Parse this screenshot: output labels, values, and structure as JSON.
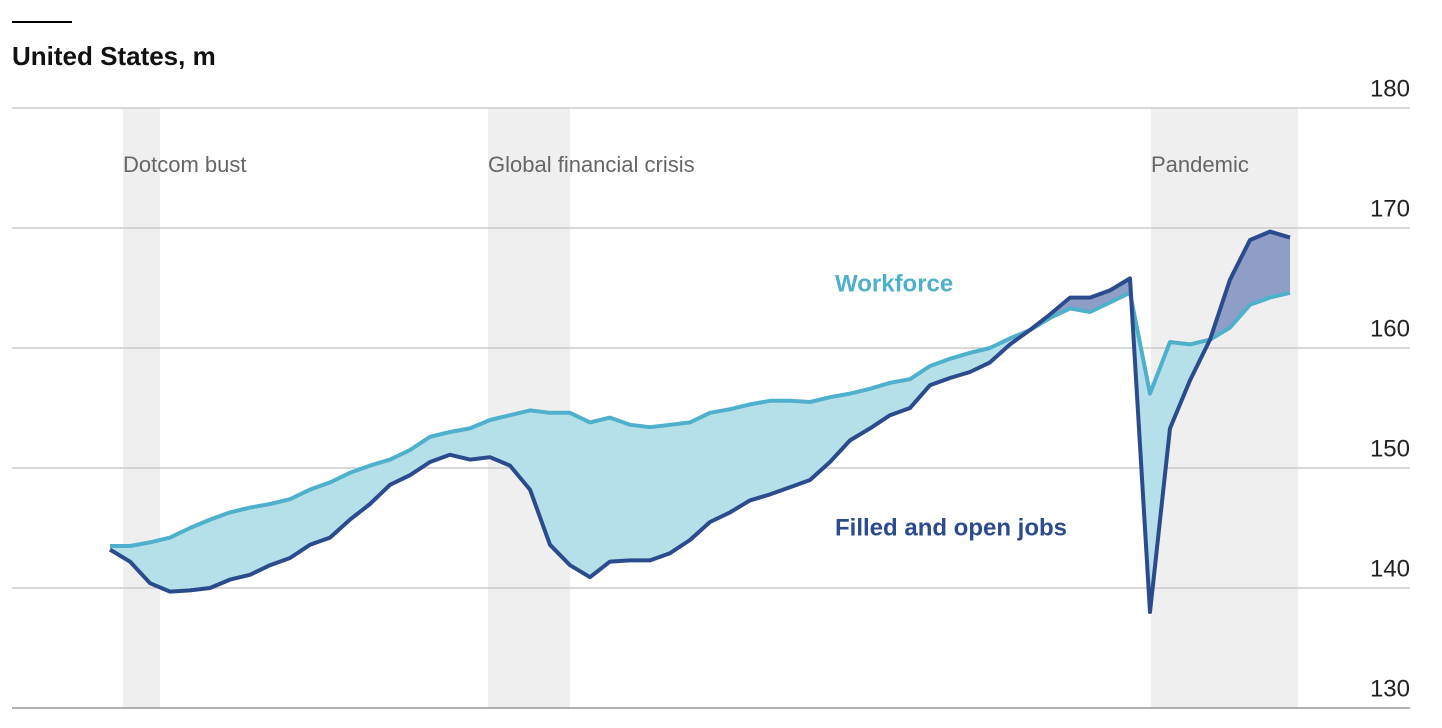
{
  "chart_data": {
    "type": "line",
    "title": "United States, m",
    "categories": [
      null,
      null,
      null,
      null,
      null,
      null,
      null,
      null,
      null,
      null,
      null,
      null,
      null,
      null,
      null,
      null,
      null,
      null,
      null,
      null,
      null,
      null,
      null,
      null,
      null,
      null,
      null,
      null,
      null,
      null,
      null,
      null,
      null,
      null,
      null,
      null,
      null,
      null,
      null,
      null,
      null,
      null,
      null,
      null,
      null,
      null,
      null,
      null,
      null,
      null,
      null,
      null,
      null,
      null,
      null,
      null,
      null,
      null,
      null,
      null
    ],
    "series": [
      {
        "name": "Workforce",
        "color": "#4fb0cc",
        "values": [
          143.5,
          143.5,
          143.8,
          144.2,
          145,
          145.7,
          146.3,
          146.7,
          147,
          147.4,
          148.2,
          148.8,
          149.6,
          150.2,
          150.7,
          151.5,
          152.6,
          153,
          153.3,
          154,
          154.4,
          154.8,
          154.6,
          154.6,
          153.8,
          154.2,
          153.6,
          153.4,
          153.6,
          153.8,
          154.6,
          154.9,
          155.3,
          155.6,
          155.6,
          155.5,
          155.9,
          156.2,
          156.6,
          157.1,
          157.4,
          158.5,
          159.1,
          159.6,
          160,
          160.8,
          161.5,
          162.5,
          163.3,
          163,
          163.8,
          164.6,
          156.2,
          160.5,
          160.3,
          160.7,
          161.7,
          163.6,
          164.2,
          164.6
        ]
      },
      {
        "name": "Filled and open jobs",
        "color": "#2b4b8c",
        "values": [
          143.2,
          142.2,
          140.4,
          139.7,
          139.8,
          140,
          140.7,
          141.1,
          141.9,
          142.5,
          143.6,
          144.2,
          145.7,
          147,
          148.6,
          149.4,
          150.5,
          151.1,
          150.7,
          150.9,
          150.2,
          148.2,
          143.6,
          141.9,
          140.9,
          142.2,
          142.3,
          142.3,
          142.9,
          144,
          145.5,
          146.3,
          147.3,
          147.8,
          148.4,
          149,
          150.5,
          152.3,
          153.3,
          154.4,
          155,
          156.9,
          157.5,
          158,
          158.8,
          160.3,
          161.5,
          162.8,
          164.2,
          164.2,
          164.8,
          165.8,
          138,
          153.3,
          157.3,
          160.7,
          165.7,
          169,
          169.7,
          169.2
        ]
      }
    ],
    "periods": [
      {
        "label": "Dotcom bust",
        "start": 0.65,
        "end": 2.5
      },
      {
        "label": "Global financial crisis",
        "start": 18.9,
        "end": 23
      },
      {
        "label": "Pandemic",
        "start": 52.05,
        "end": 59.4
      }
    ],
    "ylim": [
      130,
      180
    ],
    "yticks": [
      130,
      140,
      150,
      160,
      170,
      180
    ],
    "grid": true
  }
}
